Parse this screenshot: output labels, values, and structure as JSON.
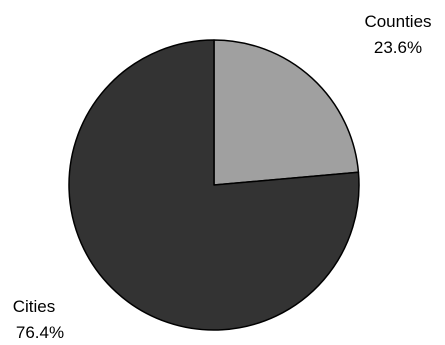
{
  "chart_data": {
    "type": "pie",
    "title": "",
    "slices": [
      {
        "label": "Counties",
        "percent_label": "23.6%",
        "value": 23.6,
        "color": "#a0a0a0"
      },
      {
        "label": "Cities",
        "percent_label": "76.4%",
        "value": 76.4,
        "color": "#333333"
      }
    ],
    "start_angle": "12 o'clock",
    "direction": "clockwise",
    "outline_color": "#000000",
    "legend": "none"
  }
}
